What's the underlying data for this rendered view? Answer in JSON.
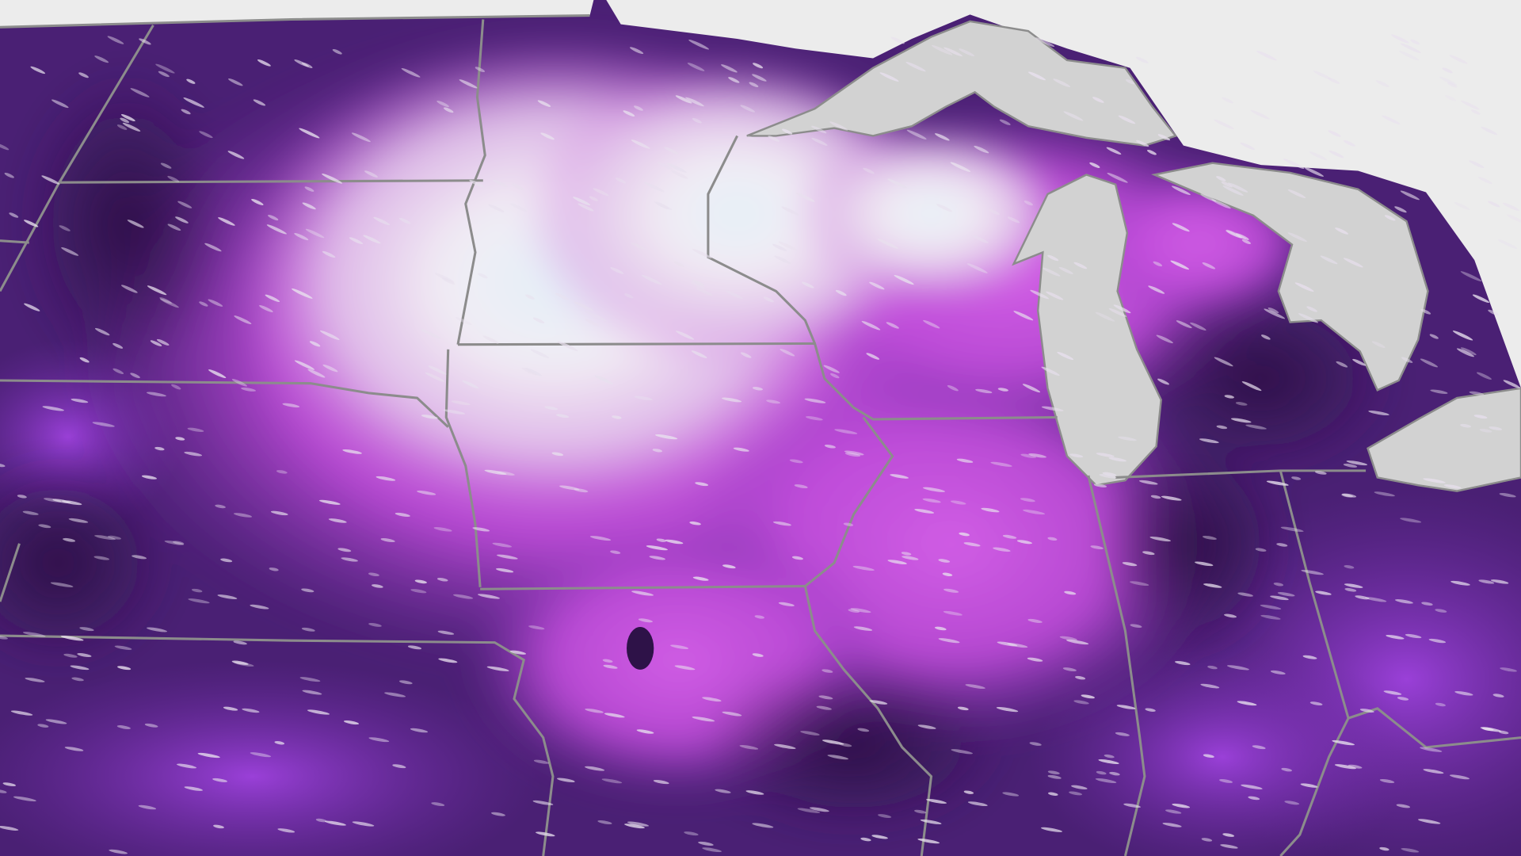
{
  "map": {
    "colors": {
      "base": "#3f1b66",
      "deep_purple": "#4a2074",
      "violet": "#7a34b8",
      "magenta": "#c94fe0",
      "light_pink": "#e6b8ee",
      "white_core": "#f3eef6",
      "ice_blue": "#e4f1f8",
      "lakes": "#d2d2d2",
      "outside_region": "#ececec",
      "borders": "#8c8c8c",
      "wind_streaks": "#e8e0ee"
    },
    "layers": [
      "color-field",
      "outside-region",
      "great-lakes",
      "state-borders",
      "wind-streaks"
    ],
    "wind_direction": "west-to-east"
  }
}
